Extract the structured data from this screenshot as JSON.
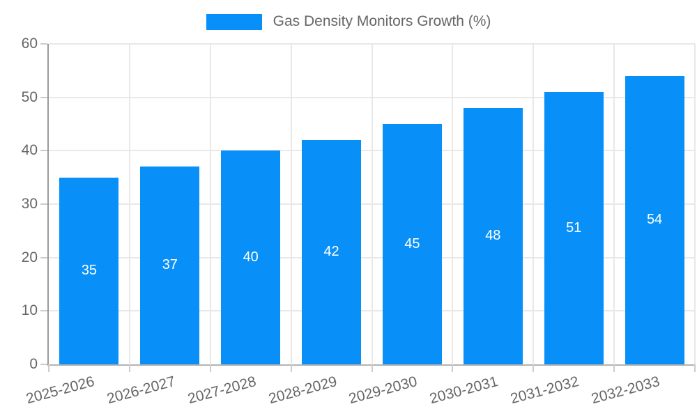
{
  "chart_data": {
    "type": "bar",
    "title": "",
    "categories": [
      "2025-2026",
      "2026-2027",
      "2027-2028",
      "2028-2029",
      "2029-2030",
      "2030-2031",
      "2031-2032",
      "2032-2033"
    ],
    "values": [
      35,
      37,
      40,
      42,
      45,
      48,
      51,
      54
    ],
    "series_name": "Gas Density Monitors Growth (%)",
    "legend": {
      "position": "top",
      "label": "Gas Density Monitors Growth (%)"
    },
    "xlabel": "",
    "ylabel": "",
    "ylim": [
      0,
      60
    ],
    "yticks": [
      0,
      10,
      20,
      30,
      40,
      50,
      60
    ],
    "grid": "on",
    "x_label_rotation_deg": -15,
    "bar_value_labels_visible": true,
    "colors": {
      "bar": "#0890f8",
      "bar_value_text": "#ffffff",
      "axis": "#999999",
      "grid": "#e8e8e8",
      "tick_mark": "#cccccc",
      "tick_text": "#666666",
      "legend_text": "#666666",
      "background": "#ffffff"
    }
  }
}
